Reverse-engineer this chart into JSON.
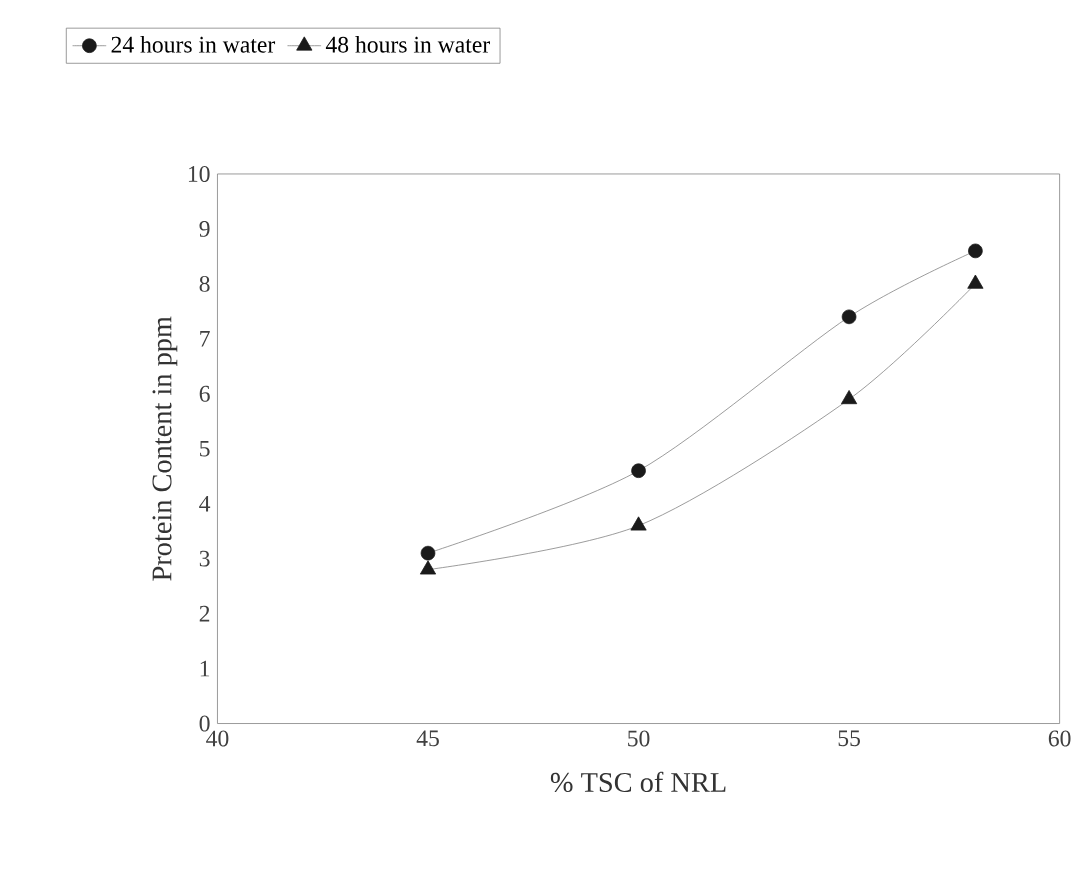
{
  "chart_data": {
    "type": "line",
    "xlabel": "% TSC of NRL",
    "ylabel": "Protein Content in ppm",
    "x": [
      45,
      50,
      55,
      58
    ],
    "series": [
      {
        "name": "24 hours in water",
        "color": "#1a1a1a",
        "marker": "circle",
        "values": [
          3.1,
          4.6,
          7.4,
          8.6
        ]
      },
      {
        "name": "48 hours in water",
        "color": "#1a1a1a",
        "marker": "triangle",
        "values": [
          2.8,
          3.6,
          5.9,
          8.0
        ]
      }
    ],
    "xlim": [
      40,
      60
    ],
    "xticks": [
      40,
      45,
      50,
      55,
      60
    ],
    "ylim": [
      0,
      10
    ],
    "yticks": [
      0,
      1,
      2,
      3,
      4,
      5,
      6,
      7,
      8,
      9,
      10
    ],
    "grid": false,
    "legend": "top",
    "line_style": "solid"
  }
}
